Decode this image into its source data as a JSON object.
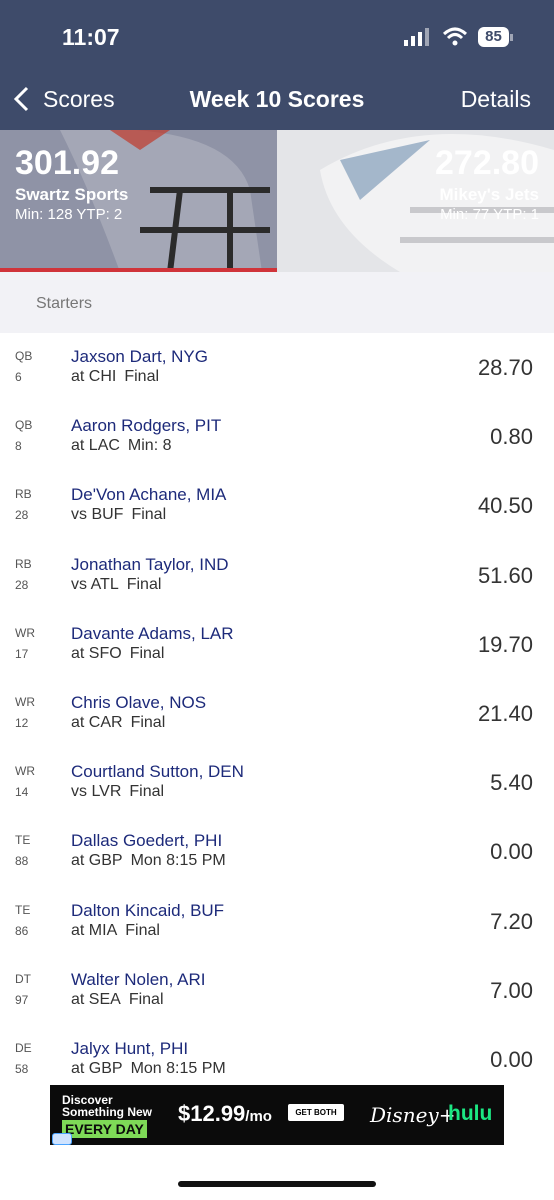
{
  "status_bar": {
    "time": "11:07",
    "battery": "85"
  },
  "nav": {
    "back": "Scores",
    "title": "Week 10 Scores",
    "action": "Details"
  },
  "home_team": {
    "score": "301.92",
    "name": "Swartz Sports",
    "info": "Min: 128 YTP: 2"
  },
  "away_team": {
    "score": "272.80",
    "name": "Mikey's Jets",
    "info": "Min: 77 YTP: 1"
  },
  "section": "Starters",
  "players": [
    {
      "pos": "QB",
      "num": "6",
      "name": "Jaxson Dart, NYG",
      "game": "at CHI",
      "status": "Final",
      "points": "28.70"
    },
    {
      "pos": "QB",
      "num": "8",
      "name": "Aaron Rodgers, PIT",
      "game": "at LAC",
      "status": "Min: 8",
      "points": "0.80"
    },
    {
      "pos": "RB",
      "num": "28",
      "name": "De'Von Achane, MIA",
      "game": "vs BUF",
      "status": "Final",
      "points": "40.50"
    },
    {
      "pos": "RB",
      "num": "28",
      "name": "Jonathan Taylor, IND",
      "game": "vs ATL",
      "status": "Final",
      "points": "51.60"
    },
    {
      "pos": "WR",
      "num": "17",
      "name": "Davante Adams, LAR",
      "game": "at SFO",
      "status": "Final",
      "points": "19.70"
    },
    {
      "pos": "WR",
      "num": "12",
      "name": "Chris Olave, NOS",
      "game": "at CAR",
      "status": "Final",
      "points": "21.40"
    },
    {
      "pos": "WR",
      "num": "14",
      "name": "Courtland Sutton, DEN",
      "game": "vs LVR",
      "status": "Final",
      "points": "5.40"
    },
    {
      "pos": "TE",
      "num": "88",
      "name": "Dallas Goedert, PHI",
      "game": "at GBP",
      "status": "Mon 8:15 PM",
      "points": "0.00"
    },
    {
      "pos": "TE",
      "num": "86",
      "name": "Dalton Kincaid, BUF",
      "game": "at MIA",
      "status": "Final",
      "points": "7.20"
    },
    {
      "pos": "DT",
      "num": "97",
      "name": "Walter Nolen, ARI",
      "game": "at SEA",
      "status": "Final",
      "points": "7.00"
    },
    {
      "pos": "DE",
      "num": "58",
      "name": "Jalyx Hunt, PHI",
      "game": "at GBP",
      "status": "Mon 8:15 PM",
      "points": "0.00"
    }
  ],
  "ad": {
    "line1": "Discover",
    "line2": "Something New",
    "line3": "EVERY DAY",
    "price": "$12.99",
    "per": "/mo",
    "button": "GET BOTH",
    "brand1": "Disney+",
    "brand2": "hulu"
  }
}
